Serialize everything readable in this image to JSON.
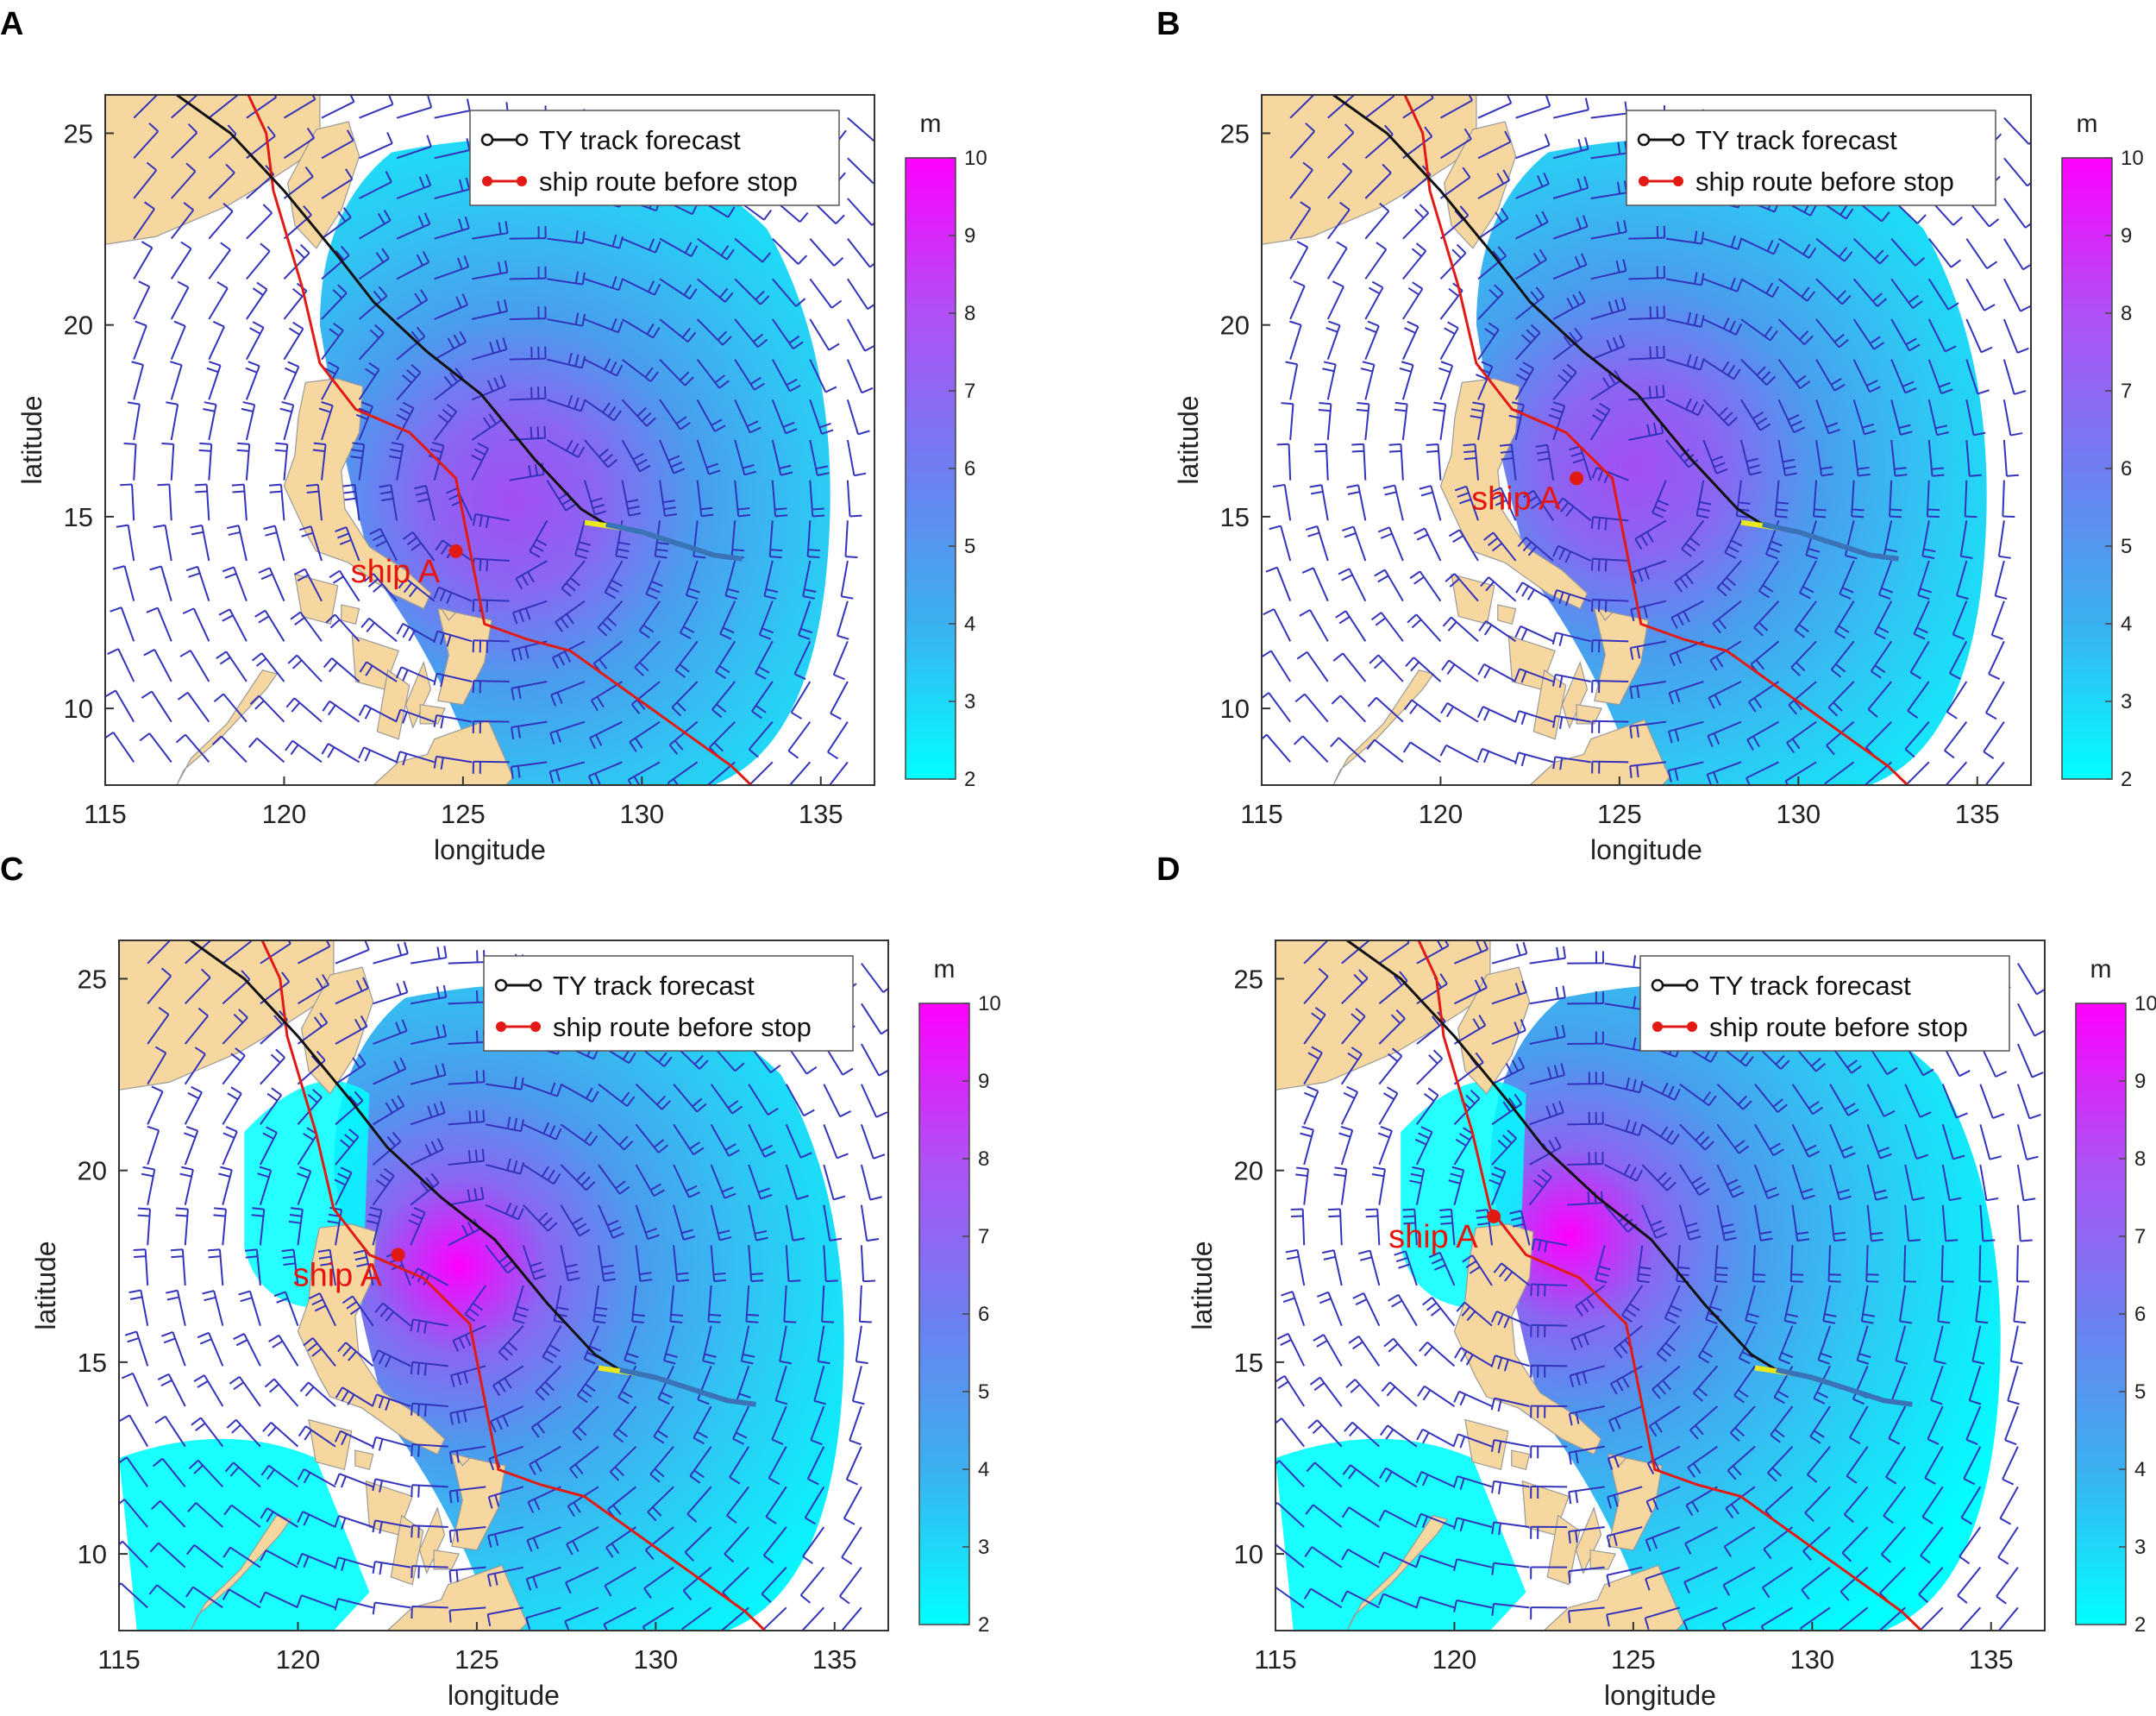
{
  "figure": {
    "colors": {
      "land": "#f7d7a0",
      "coast": "#999999",
      "wind_barb": "#3333bb",
      "wind_barb_strong": "#111111",
      "ty_track": "#111111",
      "ship_route": "#e11b14",
      "track_highlight": "#e8e81c",
      "track_tail": "#3a73b8",
      "wave_low": "#00ffff",
      "wave_mid": "#4a9cee",
      "wave_high": "#ff00ff"
    },
    "panels": [
      {
        "id": "A",
        "letter": "A",
        "xlabel": "longitude",
        "ylabel": "latitude",
        "xticks": [
          "115",
          "120",
          "125",
          "130",
          "135"
        ],
        "yticks": [
          "25",
          "20",
          "15",
          "10"
        ],
        "legend": {
          "items": [
            "TY track forecast",
            "ship route before stop"
          ]
        },
        "colorbar": {
          "unit": "m",
          "ticks": [
            "10",
            "9",
            "8",
            "7",
            "6",
            "5",
            "4",
            "3",
            "2"
          ]
        },
        "ship": {
          "label": "ship A",
          "lon": 124.8,
          "lat": 14.1
        },
        "typhoon_center": {
          "lon": 126.4,
          "lat": 15.4,
          "peak_wave_m": 7
        }
      },
      {
        "id": "B",
        "letter": "B",
        "xlabel": "longitude",
        "ylabel": "latitude",
        "xticks": [
          "115",
          "120",
          "125",
          "130",
          "135"
        ],
        "yticks": [
          "25",
          "20",
          "15",
          "10"
        ],
        "legend": {
          "items": [
            "TY track forecast",
            "ship route before stop"
          ]
        },
        "colorbar": {
          "unit": "m",
          "ticks": [
            "10",
            "9",
            "8",
            "7",
            "6",
            "5",
            "4",
            "3",
            "2"
          ]
        },
        "ship": {
          "label": "ship A",
          "lon": 123.8,
          "lat": 16.0
        },
        "typhoon_center": {
          "lon": 125.4,
          "lat": 16.3,
          "peak_wave_m": 7
        }
      },
      {
        "id": "C",
        "letter": "C",
        "xlabel": "longitude",
        "ylabel": "latitude",
        "xticks": [
          "115",
          "120",
          "125",
          "130",
          "135"
        ],
        "yticks": [
          "25",
          "20",
          "15",
          "10"
        ],
        "legend": {
          "items": [
            "TY track forecast",
            "ship route before stop"
          ]
        },
        "colorbar": {
          "unit": "m",
          "ticks": [
            "10",
            "9",
            "8",
            "7",
            "6",
            "5",
            "4",
            "3",
            "2"
          ]
        },
        "ship": {
          "label": "ship A",
          "lon": 122.8,
          "lat": 17.8
        },
        "typhoon_center": {
          "lon": 124.5,
          "lat": 17.5,
          "peak_wave_m": 9
        }
      },
      {
        "id": "D",
        "letter": "D",
        "xlabel": "longitude",
        "ylabel": "latitude",
        "xticks": [
          "115",
          "120",
          "125",
          "130",
          "135"
        ],
        "yticks": [
          "25",
          "20",
          "15",
          "10"
        ],
        "legend": {
          "items": [
            "TY track forecast",
            "ship route before stop"
          ]
        },
        "colorbar": {
          "unit": "m",
          "ticks": [
            "10",
            "9",
            "8",
            "7",
            "6",
            "5",
            "4",
            "3",
            "2"
          ]
        },
        "ship": {
          "label": "ship A",
          "lon": 121.1,
          "lat": 18.8
        },
        "typhoon_center": {
          "lon": 123.2,
          "lat": 18.3,
          "peak_wave_m": 9.5
        }
      }
    ],
    "ty_track": {
      "lon": [
        117.0,
        118.5,
        120.0,
        121.5,
        122.5,
        124.0,
        125.5,
        127.0,
        128.3,
        129.0
      ],
      "lat": [
        26.0,
        25.0,
        23.5,
        21.8,
        20.6,
        19.3,
        18.2,
        16.5,
        15.2,
        14.8
      ]
    },
    "track_tail": {
      "lon": [
        129.0,
        130.0,
        131.0,
        132.0,
        132.8
      ],
      "lat": [
        14.8,
        14.6,
        14.3,
        14.0,
        13.9
      ]
    },
    "ship_route": {
      "lon": [
        119.0,
        119.5,
        119.7,
        120.5,
        121.0,
        122.0,
        123.5,
        124.8,
        125.6,
        126.8,
        128.0,
        129.5,
        131.0,
        132.5,
        133.5
      ],
      "lat": [
        26.0,
        25.0,
        23.5,
        21.0,
        19.0,
        17.8,
        17.2,
        16.0,
        12.2,
        11.8,
        11.5,
        10.5,
        9.5,
        8.5,
        7.6
      ]
    }
  }
}
